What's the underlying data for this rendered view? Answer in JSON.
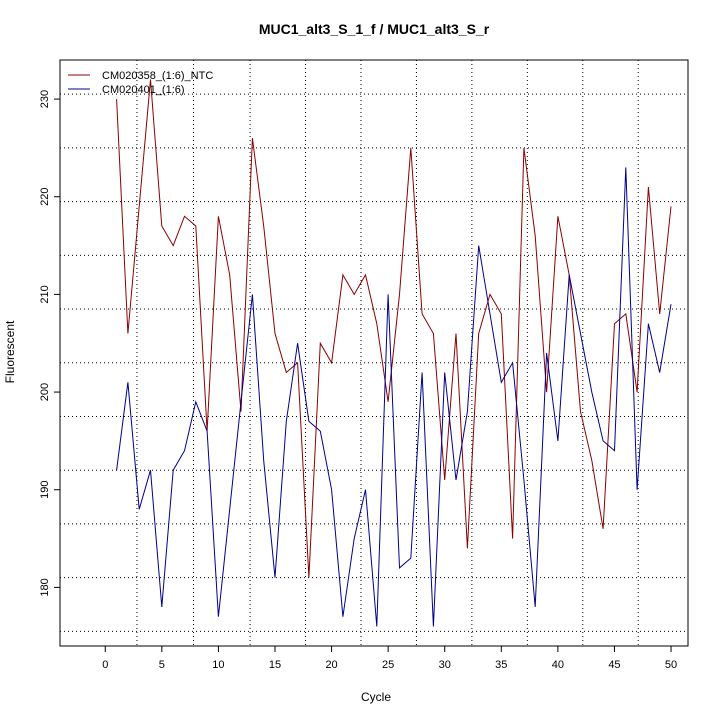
{
  "chart_data": {
    "type": "line",
    "title": "MUC1_alt3_S_1_f / MUC1_alt3_S_r",
    "xlabel": "Cycle",
    "ylabel": "Fluorescent",
    "xlim": [
      -4,
      51.5
    ],
    "ylim": [
      174,
      234
    ],
    "x_ticks": [
      0,
      5,
      10,
      15,
      20,
      25,
      30,
      35,
      40,
      45,
      50
    ],
    "y_ticks": [
      180,
      190,
      200,
      210,
      220,
      230
    ],
    "x_tick_labels": [
      "0",
      "5",
      "10",
      "15",
      "20",
      "25",
      "30",
      "35",
      "40",
      "45",
      "50"
    ],
    "y_tick_labels": [
      "180",
      "190",
      "200",
      "210",
      "220",
      "230"
    ],
    "x_grid_lines": [
      2.8,
      7.8,
      12.8,
      17.7,
      22.6,
      27.5,
      32.4,
      37.3,
      42.2,
      47.1
    ],
    "y_grid_lines": [
      175.5,
      181,
      186.5,
      192,
      197.5,
      203,
      208.5,
      214,
      219.5,
      225,
      230.5
    ],
    "grid": true,
    "legend_position": "top-left",
    "x": [
      1,
      2,
      3,
      4,
      5,
      6,
      7,
      8,
      9,
      10,
      11,
      12,
      13,
      14,
      15,
      16,
      17,
      18,
      19,
      20,
      21,
      22,
      23,
      24,
      25,
      26,
      27,
      28,
      29,
      30,
      31,
      32,
      33,
      34,
      35,
      36,
      37,
      38,
      39,
      40,
      41,
      42,
      43,
      44,
      45,
      46,
      47,
      48,
      49,
      50
    ],
    "series": [
      {
        "name": "CM020358_(1:6)_NTC",
        "color": "#8b0000",
        "values": [
          230,
          206,
          219,
          232,
          217,
          215,
          218,
          217,
          196,
          218,
          212,
          198,
          226,
          217,
          206,
          202,
          203,
          181,
          205,
          203,
          212,
          210,
          212,
          207,
          199,
          210,
          225,
          208,
          206,
          191,
          206,
          184,
          206,
          210,
          208,
          185,
          225,
          216,
          200,
          218,
          212,
          198,
          193,
          186,
          207,
          208,
          200,
          221,
          208,
          219
        ]
      },
      {
        "name": "CM020401_(1:6)",
        "color": "#00008b",
        "values": [
          192,
          201,
          188,
          192,
          178,
          192,
          194,
          199,
          196,
          177,
          188,
          199,
          210,
          193,
          181,
          197,
          205,
          197,
          196,
          190,
          177,
          185,
          190,
          176,
          210,
          182,
          183,
          202,
          176,
          202,
          191,
          198,
          215,
          208,
          201,
          203,
          191,
          178,
          204,
          195,
          212,
          206,
          200,
          195,
          194,
          223,
          190,
          207,
          202,
          209
        ]
      }
    ]
  }
}
